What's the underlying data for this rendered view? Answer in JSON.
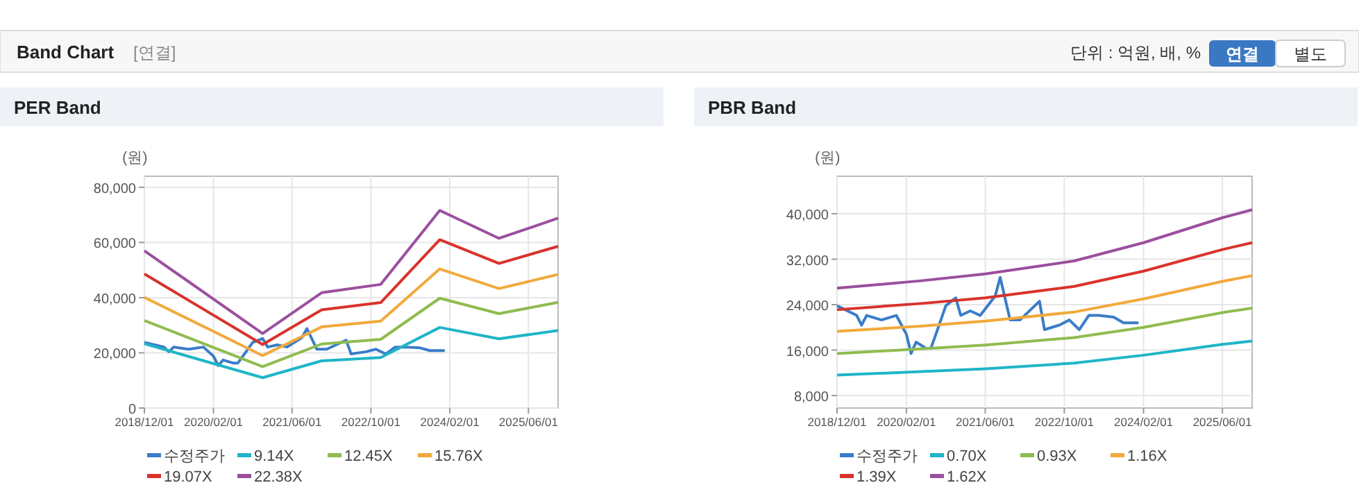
{
  "chart_data": [
    {
      "type": "other",
      "title": "Band Chart",
      "annotations": [
        "[연결]",
        "단위 : 억원, 배, %",
        "연결",
        "별도"
      ]
    },
    {
      "type": "line",
      "title": "PER Band",
      "ylabel": "(원)",
      "xlim": [
        "2018-12-01",
        "2025-12-01"
      ],
      "ylim": [
        0,
        84000
      ],
      "xticks": [
        {
          "value": "2018-12-01",
          "label": "2018/12/01"
        },
        {
          "value": "2020-02-01",
          "label": "2020/02/01"
        },
        {
          "value": "2021-06-01",
          "label": "2021/06/01"
        },
        {
          "value": "2022-10-01",
          "label": "2022/10/01"
        },
        {
          "value": "2024-02-01",
          "label": "2024/02/01"
        },
        {
          "value": "2025-06-01",
          "label": "2025/06/01"
        }
      ],
      "yticks": [
        0,
        {
          "value": 20000,
          "label": "20,000"
        },
        {
          "value": 40000,
          "label": "40,000"
        },
        {
          "value": 60000,
          "label": "60,000"
        },
        {
          "value": 80000,
          "label": "80,000"
        }
      ],
      "grid": true,
      "legend": "bottom",
      "series": [
        {
          "name": "수정주가",
          "color": "#3a7dc9",
          "x": [
            "2018-12",
            "2019-04",
            "2019-05",
            "2019-06",
            "2019-09",
            "2019-12",
            "2020-02",
            "2020-03",
            "2020-04",
            "2020-06",
            "2020-07",
            "2020-08",
            "2020-10",
            "2020-12",
            "2021-01",
            "2021-03",
            "2021-05",
            "2021-08",
            "2021-09",
            "2021-11",
            "2022-01",
            "2022-05",
            "2022-06",
            "2022-09",
            "2022-11",
            "2023-01",
            "2023-03",
            "2023-05",
            "2023-08",
            "2023-10",
            "2024-01"
          ],
          "values": [
            23800,
            22100,
            20400,
            22100,
            21300,
            22100,
            18800,
            15400,
            17400,
            16300,
            16300,
            18800,
            23800,
            25200,
            22100,
            22900,
            22100,
            25500,
            28800,
            21300,
            21300,
            24600,
            19600,
            20400,
            21300,
            19600,
            22100,
            22100,
            21800,
            20800,
            20800
          ]
        },
        {
          "name": "9.14X",
          "color": "#1fb5c8",
          "x": [
            "2018-12",
            "2020-12",
            "2021-12",
            "2022-12",
            "2023-12",
            "2024-12",
            "2025-12"
          ],
          "values": [
            23300,
            11000,
            17100,
            18300,
            29200,
            25100,
            28100
          ]
        },
        {
          "name": "12.45X",
          "color": "#8fbc4f",
          "x": [
            "2018-12",
            "2020-12",
            "2021-12",
            "2022-12",
            "2023-12",
            "2024-12",
            "2025-12"
          ],
          "values": [
            31700,
            15000,
            23200,
            24900,
            39800,
            34200,
            38300
          ]
        },
        {
          "name": "15.76X",
          "color": "#f2a93b",
          "x": [
            "2018-12",
            "2020-12",
            "2021-12",
            "2022-12",
            "2023-12",
            "2024-12",
            "2025-12"
          ],
          "values": [
            40100,
            19000,
            29400,
            31500,
            50400,
            43300,
            48400
          ]
        },
        {
          "name": "19.07X",
          "color": "#d9332c",
          "x": [
            "2018-12",
            "2020-12",
            "2021-12",
            "2022-12",
            "2023-12",
            "2024-12",
            "2025-12"
          ],
          "values": [
            48600,
            23000,
            35600,
            38200,
            61000,
            52400,
            58600
          ]
        },
        {
          "name": "22.38X",
          "color": "#9b4f9e",
          "x": [
            "2018-12",
            "2020-12",
            "2021-12",
            "2022-12",
            "2023-12",
            "2024-12",
            "2025-12"
          ],
          "values": [
            57000,
            27000,
            41800,
            44800,
            71600,
            61500,
            68800
          ]
        }
      ]
    },
    {
      "type": "line",
      "title": "PBR Band",
      "ylabel": "(원)",
      "xlim": [
        "2018-12-01",
        "2025-12-01"
      ],
      "ylim": [
        5800,
        46600
      ],
      "xticks": [
        {
          "value": "2018-12-01",
          "label": "2018/12/01"
        },
        {
          "value": "2020-02-01",
          "label": "2020/02/01"
        },
        {
          "value": "2021-06-01",
          "label": "2021/06/01"
        },
        {
          "value": "2022-10-01",
          "label": "2022/10/01"
        },
        {
          "value": "2024-02-01",
          "label": "2024/02/01"
        },
        {
          "value": "2025-06-01",
          "label": "2025/06/01"
        }
      ],
      "yticks": [
        {
          "value": 8000,
          "label": "8,000"
        },
        {
          "value": 16000,
          "label": "16,000"
        },
        {
          "value": 24000,
          "label": "24,000"
        },
        {
          "value": 32000,
          "label": "32,000"
        },
        {
          "value": 40000,
          "label": "40,000"
        }
      ],
      "grid": true,
      "legend": "bottom",
      "series": [
        {
          "name": "수정주가",
          "color": "#3a7dc9",
          "x": [
            "2018-12",
            "2019-04",
            "2019-05",
            "2019-06",
            "2019-09",
            "2019-12",
            "2020-02",
            "2020-03",
            "2020-04",
            "2020-06",
            "2020-07",
            "2020-08",
            "2020-10",
            "2020-12",
            "2021-01",
            "2021-03",
            "2021-05",
            "2021-08",
            "2021-09",
            "2021-11",
            "2022-01",
            "2022-05",
            "2022-06",
            "2022-09",
            "2022-11",
            "2023-01",
            "2023-03",
            "2023-05",
            "2023-08",
            "2023-10",
            "2024-01"
          ],
          "values": [
            23800,
            22100,
            20400,
            22100,
            21300,
            22100,
            18800,
            15400,
            17400,
            16300,
            16300,
            18800,
            23800,
            25200,
            22100,
            22900,
            22100,
            25500,
            28800,
            21300,
            21300,
            24600,
            19600,
            20400,
            21300,
            19600,
            22100,
            22100,
            21800,
            20800,
            20800
          ]
        },
        {
          "name": "0.70X",
          "color": "#1fb5c8",
          "x": [
            "2018-12",
            "2020-05",
            "2021-06",
            "2022-12",
            "2024-02",
            "2025-06",
            "2025-12"
          ],
          "values": [
            11600,
            12200,
            12700,
            13700,
            15100,
            17000,
            17600
          ]
        },
        {
          "name": "0.93X",
          "color": "#8fbc4f",
          "x": [
            "2018-12",
            "2020-05",
            "2021-06",
            "2022-12",
            "2024-02",
            "2025-06",
            "2025-12"
          ],
          "values": [
            15400,
            16200,
            16900,
            18200,
            20000,
            22600,
            23400
          ]
        },
        {
          "name": "1.16X",
          "color": "#f2a93b",
          "x": [
            "2018-12",
            "2020-05",
            "2021-06",
            "2022-12",
            "2024-02",
            "2025-06",
            "2025-12"
          ],
          "values": [
            19300,
            20200,
            21100,
            22700,
            25000,
            28100,
            29100
          ]
        },
        {
          "name": "1.39X",
          "color": "#d9332c",
          "x": [
            "2018-12",
            "2020-05",
            "2021-06",
            "2022-12",
            "2024-02",
            "2025-06",
            "2025-12"
          ],
          "values": [
            23100,
            24200,
            25200,
            27200,
            29900,
            33700,
            34900
          ]
        },
        {
          "name": "1.62X",
          "color": "#9b4f9e",
          "x": [
            "2018-12",
            "2020-05",
            "2021-06",
            "2022-12",
            "2024-02",
            "2025-06",
            "2025-12"
          ],
          "values": [
            26900,
            28200,
            29400,
            31700,
            34900,
            39300,
            40700
          ]
        }
      ]
    }
  ]
}
